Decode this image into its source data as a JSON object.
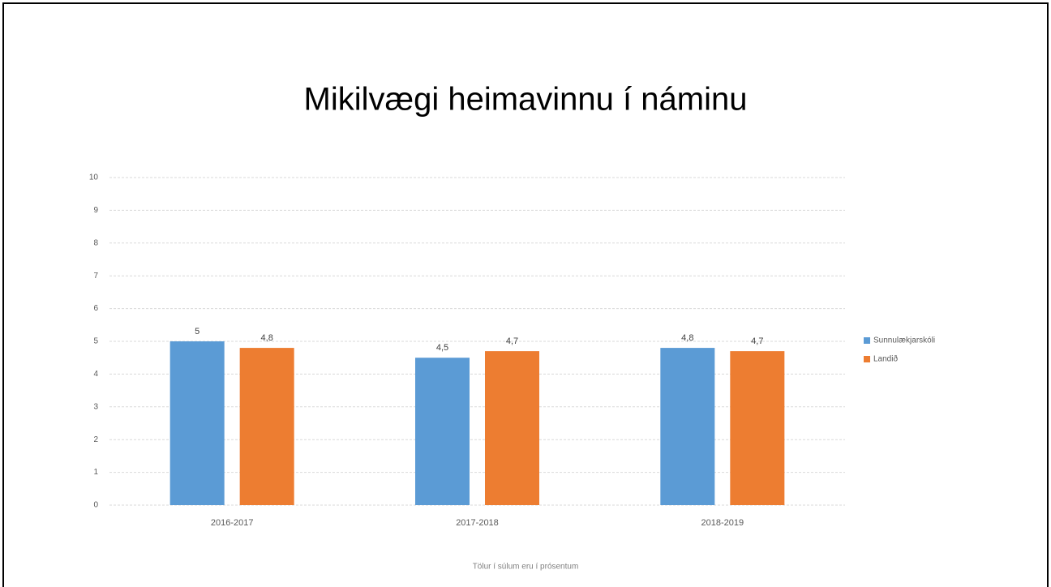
{
  "chart_data": {
    "type": "bar",
    "title": "Mikilvægi heimavinnu í náminu",
    "categories": [
      "2016-2017",
      "2017-2018",
      "2018-2019"
    ],
    "series": [
      {
        "name": "Sunnulækjarskóli",
        "color": "#5b9bd5",
        "values": [
          5,
          4.5,
          4.8
        ],
        "value_labels": [
          "5",
          "4,5",
          "4,8"
        ]
      },
      {
        "name": "Landið",
        "color": "#ed7d31",
        "values": [
          4.8,
          4.7,
          4.7
        ],
        "value_labels": [
          "4,8",
          "4,7",
          "4,7"
        ]
      }
    ],
    "ylim": [
      0,
      10
    ],
    "yticks": [
      0,
      1,
      2,
      3,
      4,
      5,
      6,
      7,
      8,
      9,
      10
    ],
    "grid": true,
    "legend": "right",
    "footnote": "Tölur í súlum eru í prósentum"
  }
}
